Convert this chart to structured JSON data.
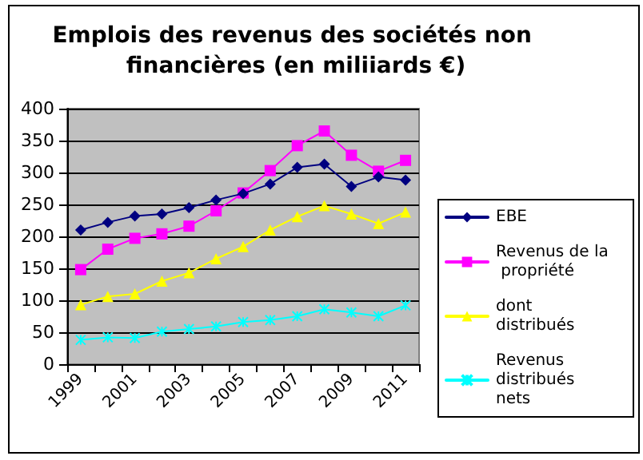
{
  "chart_data": {
    "type": "line",
    "title": "Emplois des revenus des sociétés non financières (en miliiards €)",
    "categories": [
      "1999",
      null,
      "2001",
      null,
      "2003",
      null,
      "2005",
      null,
      "2007",
      null,
      "2009",
      null,
      "2011"
    ],
    "series": [
      {
        "name": "EBE",
        "color": "#000080",
        "marker": "diamond",
        "values": [
          210,
          222,
          232,
          235,
          245,
          257,
          267,
          282,
          308,
          313,
          278,
          293,
          288
        ]
      },
      {
        "name": "Revenus de la propriété",
        "color": "#ff00ff",
        "marker": "square",
        "values": [
          148,
          180,
          197,
          204,
          216,
          240,
          268,
          303,
          342,
          365,
          327,
          302,
          319
        ]
      },
      {
        "name": "dont distribués",
        "color": "#ffff00",
        "marker": "triangle",
        "values": [
          93,
          106,
          110,
          130,
          143,
          165,
          184,
          210,
          231,
          248,
          235,
          220,
          238
        ]
      },
      {
        "name": "Revenus distribués nets",
        "color": "#00ffff",
        "marker": "cross",
        "values": [
          38,
          42,
          41,
          51,
          55,
          59,
          66,
          69,
          75,
          86,
          81,
          75,
          92
        ]
      }
    ],
    "ylim": [
      0,
      400
    ],
    "yticks": [
      0,
      50,
      100,
      150,
      200,
      250,
      300,
      350,
      400
    ],
    "grid": "y",
    "legend": "right"
  }
}
